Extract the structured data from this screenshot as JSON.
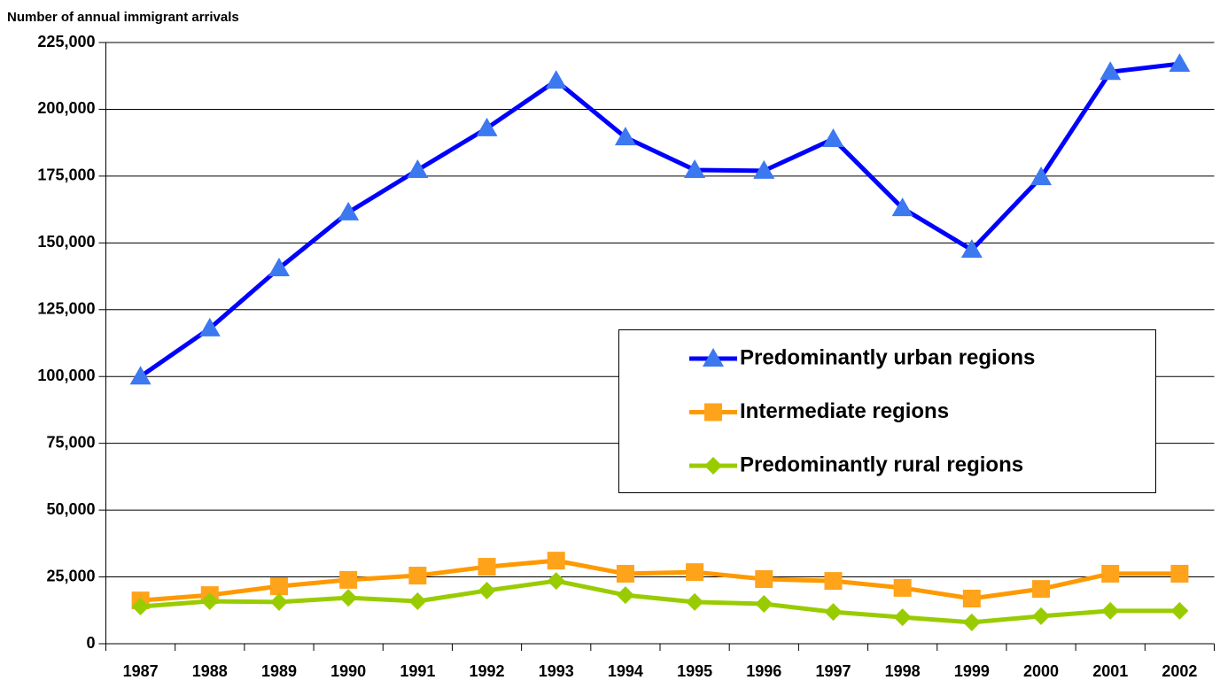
{
  "chart_data": {
    "type": "line",
    "y_axis_label": "Number of annual immigrant arrivals",
    "categories": [
      "1987",
      "1988",
      "1989",
      "1990",
      "1991",
      "1992",
      "1993",
      "1994",
      "1995",
      "1996",
      "1997",
      "1998",
      "1999",
      "2000",
      "2001",
      "2002"
    ],
    "series": [
      {
        "name": "Predominantly urban regions",
        "color": "#0000ff",
        "marker_color": "#3c78f0",
        "marker": "triangle",
        "values": [
          100000,
          118000,
          140500,
          161400,
          177300,
          192900,
          210700,
          189500,
          177300,
          177000,
          188900,
          163000,
          147400,
          174600,
          214000,
          217000
        ]
      },
      {
        "name": "Intermediate regions",
        "color": "#ff9900",
        "marker_color": "#ffa31a",
        "marker": "square",
        "values": [
          16200,
          18200,
          21500,
          23900,
          25500,
          28800,
          31100,
          26200,
          26800,
          24200,
          23500,
          20900,
          16900,
          20500,
          26200,
          26200
        ]
      },
      {
        "name": "Predominantly rural regions",
        "color": "#99cc00",
        "marker_color": "#99cc00",
        "marker": "diamond",
        "values": [
          13900,
          15900,
          15600,
          17200,
          15900,
          19900,
          23500,
          18200,
          15600,
          14900,
          11900,
          9900,
          8000,
          10300,
          12300,
          12300
        ]
      }
    ],
    "ylim": [
      0,
      225000
    ],
    "yticks": [
      0,
      {
        "value": 25000,
        "label": "25,000"
      },
      {
        "value": 50000,
        "label": "50,000"
      },
      {
        "value": 75000,
        "label": "75,000"
      },
      {
        "value": 100000,
        "label": "100,000"
      },
      {
        "value": 125000,
        "label": "125,000"
      },
      {
        "value": 150000,
        "label": "150,000"
      },
      {
        "value": 175000,
        "label": "175,000"
      },
      {
        "value": 200000,
        "label": "200,000"
      },
      {
        "value": 225000,
        "label": "225,000"
      }
    ],
    "grid": true,
    "legend": "right"
  }
}
